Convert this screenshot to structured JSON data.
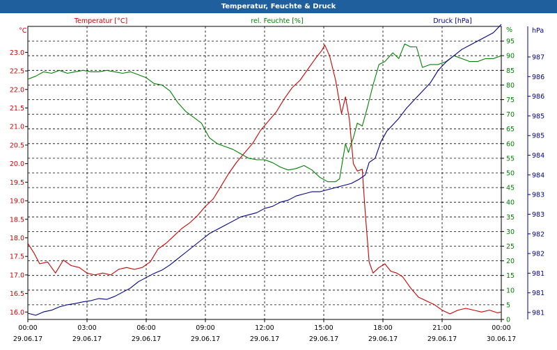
{
  "window": {
    "title": "Temperatur, Feuchte & Druck"
  },
  "chart_data": {
    "type": "line",
    "title": "Temperatur, Feuchte & Druck",
    "grid": true,
    "x_ticks": [
      {
        "time": "00:00",
        "date": "29.06.17"
      },
      {
        "time": "03:00",
        "date": "29.06.17"
      },
      {
        "time": "06:00",
        "date": "29.06.17"
      },
      {
        "time": "09:00",
        "date": "29.06.17"
      },
      {
        "time": "12:00",
        "date": "29.06.17"
      },
      {
        "time": "15:00",
        "date": "29.06.17"
      },
      {
        "time": "18:00",
        "date": "29.06.17"
      },
      {
        "time": "21:00",
        "date": "29.06.17"
      },
      {
        "time": "00:00",
        "date": "30.06.17"
      }
    ],
    "axes": {
      "temperature": {
        "label": "Temperatur [°C]",
        "unit": "°C",
        "color": "#cc0000",
        "range": [
          15.8,
          23.7
        ],
        "ticks": [
          "16.0",
          "16.5",
          "17.0",
          "17.5",
          "18.0",
          "18.5",
          "19.0",
          "19.5",
          "20.0",
          "20.5",
          "21.0",
          "21.5",
          "22.0",
          "22.5",
          "23.0"
        ]
      },
      "humidity": {
        "label": "rel. Feuchte [%]",
        "unit": "%",
        "color": "#008000",
        "range": [
          0,
          100
        ],
        "ticks": [
          "0",
          "5",
          "10",
          "15",
          "20",
          "25",
          "30",
          "35",
          "40",
          "45",
          "50",
          "55",
          "60",
          "65",
          "70",
          "75",
          "80",
          "85",
          "90",
          "95"
        ]
      },
      "pressure": {
        "label": "Druck [hPa]",
        "unit": "hPa",
        "color": "#00008b",
        "range": [
          980.5,
          987.5
        ],
        "ticks": [
          "981",
          "981",
          "981",
          "982",
          "982",
          "983",
          "983",
          "984",
          "984",
          "985",
          "985",
          "986",
          "986",
          "987"
        ]
      }
    },
    "series": [
      {
        "name": "Temperatur [°C]",
        "axis": "temperature",
        "color": "#cc0000",
        "x": [
          0,
          0.3,
          0.6,
          1,
          1.4,
          1.8,
          2.2,
          2.6,
          3,
          3.4,
          3.8,
          4.2,
          4.6,
          5,
          5.4,
          5.8,
          6.2,
          6.6,
          7,
          7.4,
          7.8,
          8.2,
          8.6,
          9,
          9.4,
          9.8,
          10.2,
          10.6,
          11,
          11.4,
          11.8,
          12.2,
          12.6,
          13,
          13.4,
          13.8,
          14.2,
          14.6,
          14.9,
          15.05,
          15.3,
          15.6,
          15.9,
          16.1,
          16.3,
          16.5,
          16.7,
          16.95,
          17.1,
          17.3,
          17.5,
          17.8,
          18.1,
          18.4,
          18.7,
          19,
          19.4,
          19.8,
          20.2,
          20.6,
          21,
          21.4,
          21.8,
          22.2,
          22.6,
          23,
          23.4,
          23.8,
          24
        ],
        "values": [
          17.85,
          17.6,
          17.3,
          17.35,
          17.05,
          17.4,
          17.25,
          17.2,
          17.05,
          17.0,
          17.05,
          17.0,
          17.15,
          17.2,
          17.15,
          17.2,
          17.35,
          17.7,
          17.85,
          18.05,
          18.25,
          18.4,
          18.6,
          18.85,
          19.05,
          19.4,
          19.75,
          20.05,
          20.3,
          20.55,
          20.9,
          21.15,
          21.4,
          21.75,
          22.05,
          22.25,
          22.55,
          22.85,
          23.05,
          23.2,
          22.9,
          22.25,
          21.35,
          21.8,
          21.2,
          20.0,
          19.8,
          19.85,
          18.7,
          17.35,
          17.05,
          17.2,
          17.3,
          17.1,
          17.05,
          16.95,
          16.65,
          16.4,
          16.3,
          16.2,
          16.05,
          15.95,
          16.05,
          16.1,
          16.05,
          16.0,
          16.05,
          15.98,
          16.0
        ]
      },
      {
        "name": "rel. Feuchte [%]",
        "axis": "humidity",
        "color": "#008000",
        "x": [
          0,
          0.4,
          0.8,
          1.2,
          1.6,
          2,
          2.4,
          2.8,
          3.2,
          3.6,
          4,
          4.4,
          4.8,
          5.2,
          5.6,
          6,
          6.4,
          6.8,
          7.2,
          7.6,
          8,
          8.4,
          8.8,
          9.2,
          9.6,
          10,
          10.4,
          10.8,
          11.2,
          11.6,
          12,
          12.4,
          12.8,
          13.2,
          13.6,
          14,
          14.4,
          14.8,
          15.2,
          15.6,
          15.8,
          15.95,
          16.1,
          16.25,
          16.5,
          16.7,
          16.95,
          17.2,
          17.5,
          17.8,
          18.1,
          18.5,
          18.8,
          19.1,
          19.4,
          19.7,
          20,
          20.4,
          20.8,
          21.2,
          21.6,
          22,
          22.4,
          22.8,
          23.2,
          23.6,
          24
        ],
        "values": [
          82,
          83,
          84.5,
          84,
          85,
          84,
          84.5,
          85,
          84.5,
          84.5,
          85,
          84.5,
          84,
          84.5,
          83.5,
          82.5,
          80.5,
          80,
          78,
          74,
          71,
          69,
          67,
          62,
          60,
          59,
          58,
          56.5,
          55,
          54.5,
          54.5,
          53.5,
          52,
          51,
          51.5,
          52.5,
          51,
          48.5,
          47,
          47,
          48,
          54,
          60,
          57,
          62,
          67,
          66,
          72,
          80,
          87,
          88,
          91,
          89,
          94,
          93,
          93,
          86,
          87,
          87,
          88,
          90,
          89,
          88,
          88,
          89,
          89,
          90
        ]
      },
      {
        "name": "Druck [hPa]",
        "axis": "pressure",
        "color": "#00008b",
        "x": [
          0,
          0.4,
          0.8,
          1.2,
          1.6,
          2,
          2.4,
          2.8,
          3.2,
          3.6,
          4,
          4.4,
          4.8,
          5.2,
          5.6,
          6,
          6.4,
          6.8,
          7.2,
          7.6,
          8,
          8.4,
          8.8,
          9.2,
          9.6,
          10,
          10.4,
          10.8,
          11.2,
          11.6,
          12,
          12.4,
          12.8,
          13.2,
          13.6,
          14,
          14.4,
          14.8,
          15.2,
          15.6,
          16,
          16.4,
          16.8,
          17.1,
          17.3,
          17.6,
          17.9,
          18.2,
          18.5,
          18.8,
          19.2,
          19.6,
          20,
          20.4,
          20.8,
          21.2,
          21.6,
          22,
          22.4,
          22.8,
          23.2,
          23.6,
          24
        ],
        "values": [
          980.65,
          980.6,
          980.68,
          980.72,
          980.8,
          980.85,
          980.88,
          980.92,
          980.95,
          981.0,
          980.98,
          981.05,
          981.15,
          981.25,
          981.4,
          981.5,
          981.6,
          981.68,
          981.8,
          981.95,
          982.1,
          982.25,
          982.4,
          982.55,
          982.65,
          982.75,
          982.85,
          982.95,
          983.0,
          983.05,
          983.15,
          983.2,
          983.3,
          983.35,
          983.45,
          983.5,
          983.55,
          983.55,
          983.6,
          983.65,
          983.7,
          983.75,
          983.85,
          983.95,
          984.25,
          984.35,
          984.75,
          985.0,
          985.15,
          985.3,
          985.55,
          985.75,
          985.95,
          986.15,
          986.45,
          986.65,
          986.8,
          986.95,
          987.05,
          987.15,
          987.25,
          987.35,
          987.55
        ]
      }
    ]
  }
}
